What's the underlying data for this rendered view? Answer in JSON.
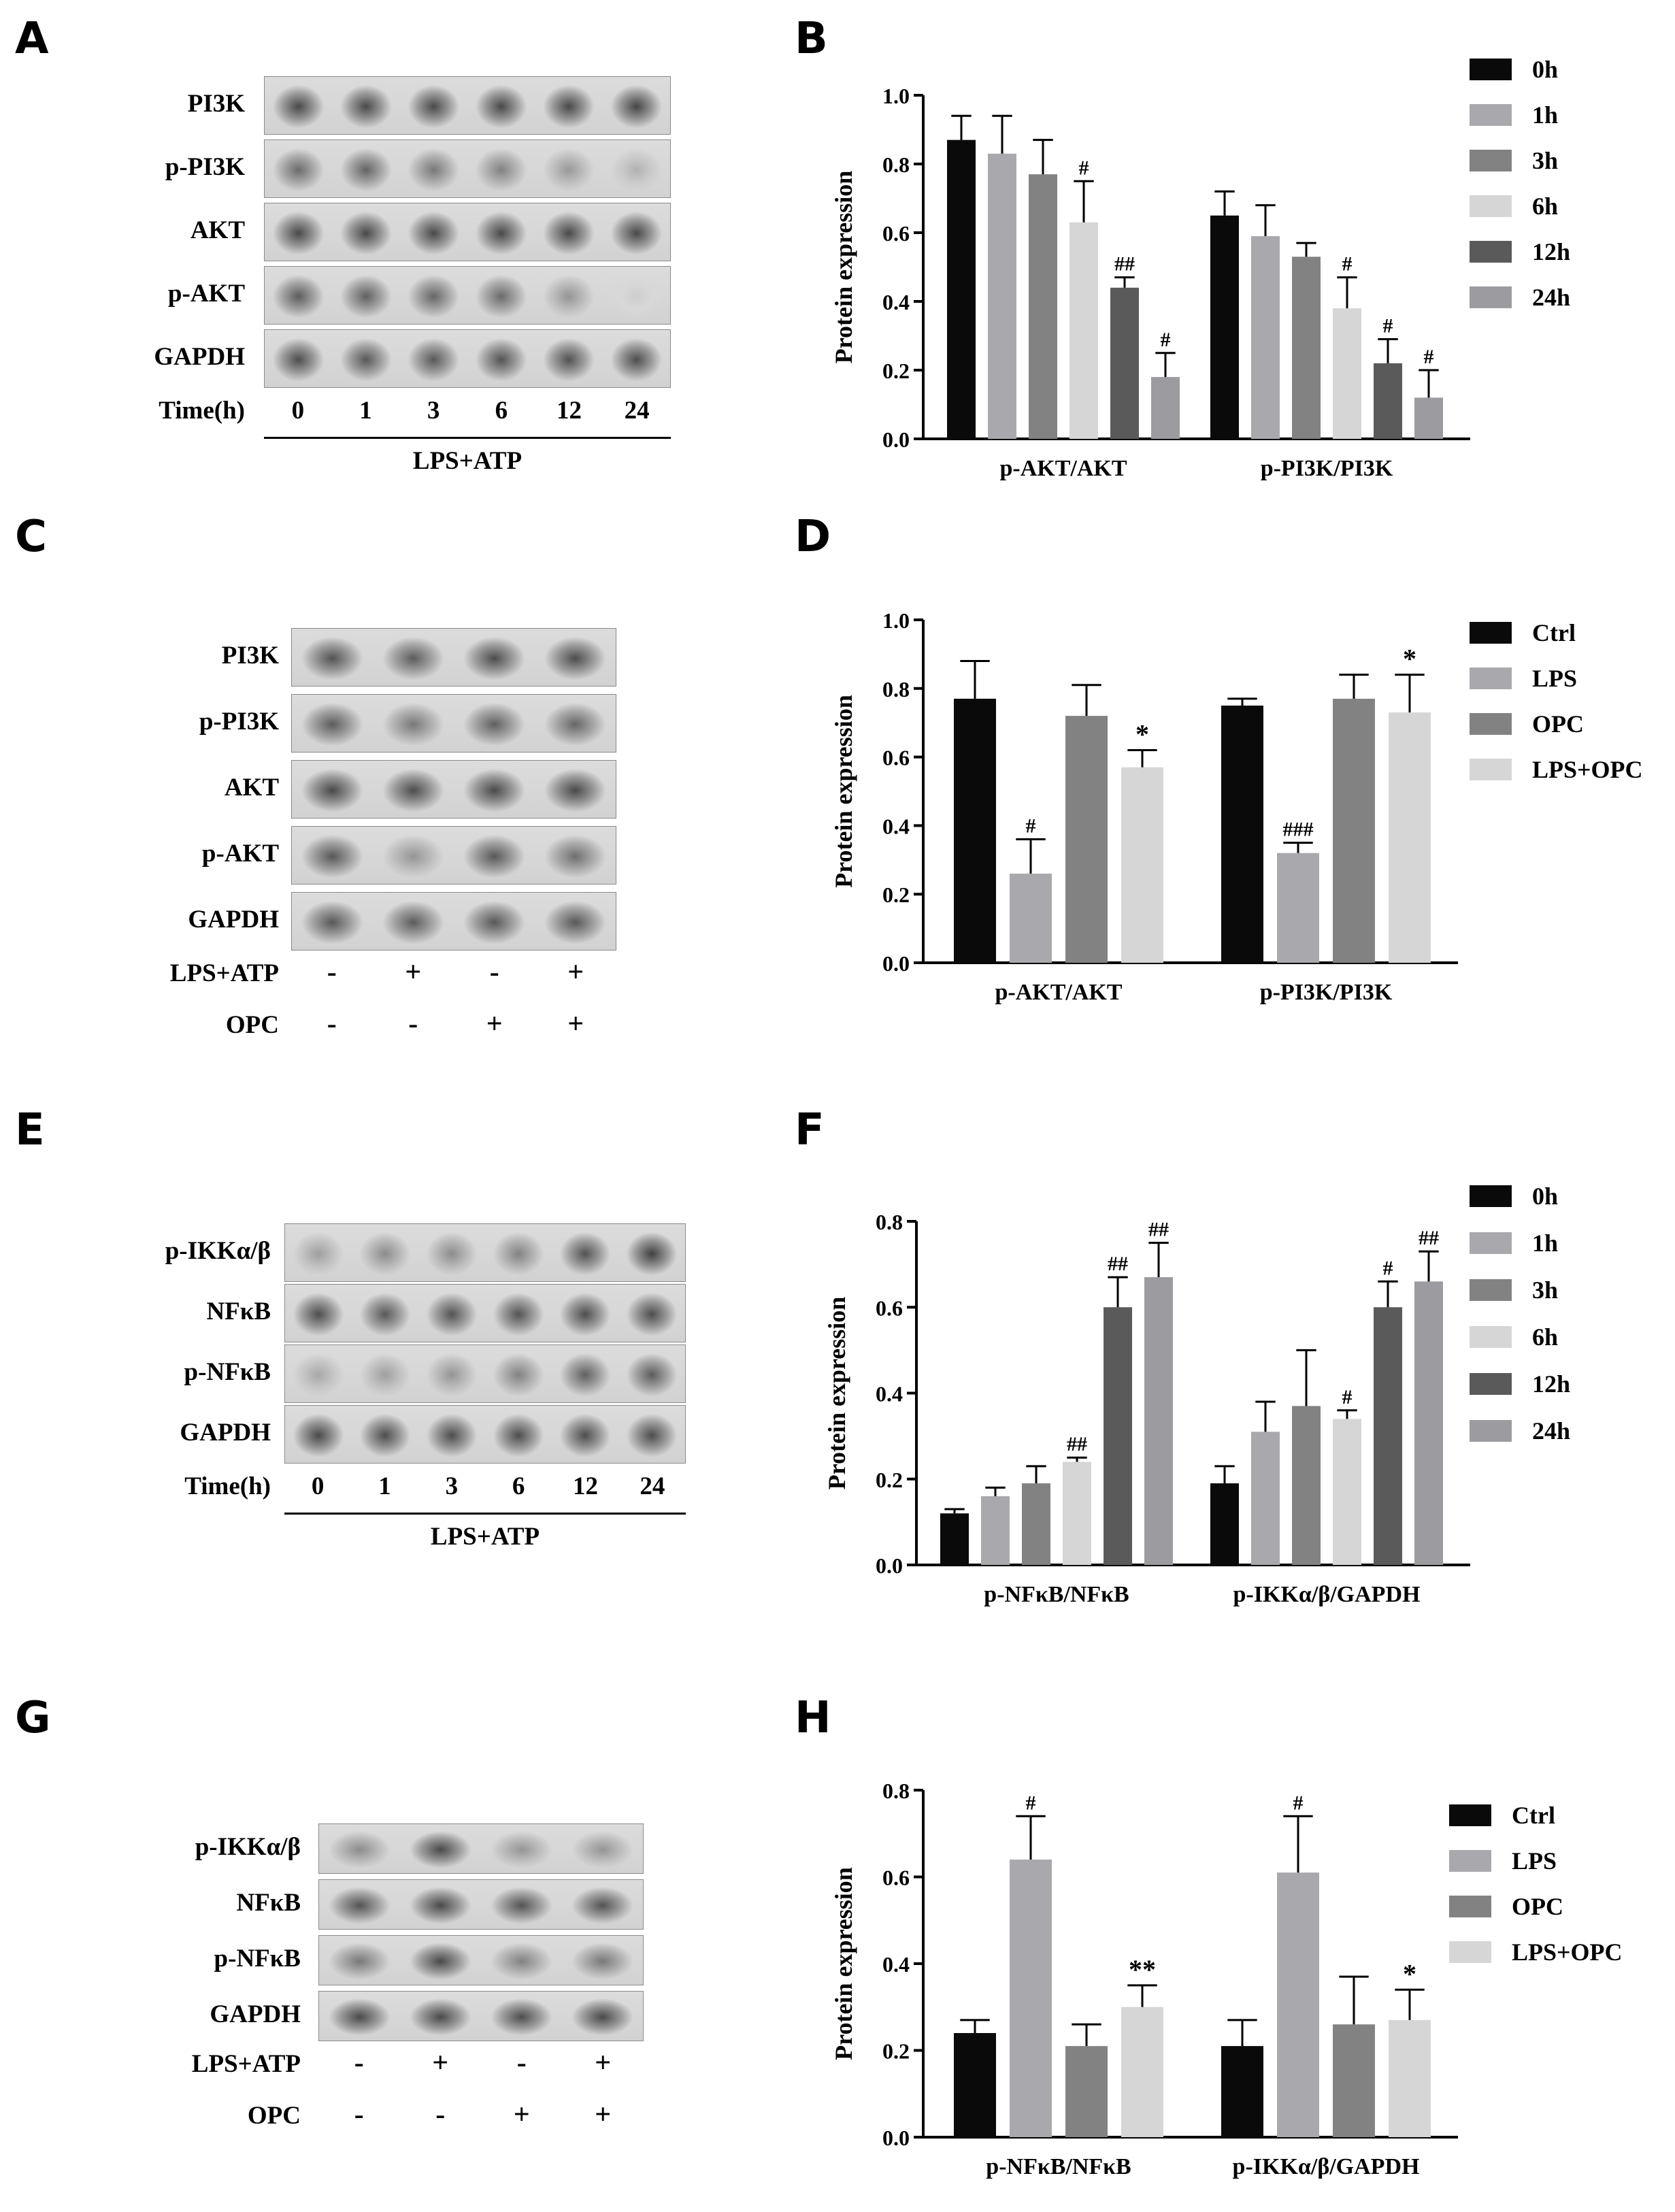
{
  "panels": {
    "A": "A",
    "B": "B",
    "C": "C",
    "D": "D",
    "E": "E",
    "F": "F",
    "G": "G",
    "H": "H"
  },
  "colors": {
    "time6": [
      "#0a0a0a",
      "#a9a9ad",
      "#828282",
      "#d6d6d6",
      "#5a5a5a",
      "#9c9ca0"
    ],
    "treat4": [
      "#0a0a0a",
      "#a9a9ad",
      "#828282",
      "#d6d6d6"
    ]
  },
  "blots": {
    "A": {
      "proteins": [
        "PI3K",
        "p-PI3K",
        "AKT",
        "p-AKT",
        "GAPDH"
      ],
      "time_label": "Time(h)",
      "lanes": [
        "0",
        "1",
        "3",
        "6",
        "12",
        "24"
      ],
      "condition": "LPS+ATP",
      "intensity": [
        [
          0.8,
          0.8,
          0.8,
          0.8,
          0.8,
          0.82
        ],
        [
          0.62,
          0.66,
          0.55,
          0.5,
          0.38,
          0.25
        ],
        [
          0.8,
          0.8,
          0.8,
          0.8,
          0.8,
          0.8
        ],
        [
          0.7,
          0.68,
          0.65,
          0.62,
          0.4,
          0.1
        ],
        [
          0.78,
          0.72,
          0.72,
          0.75,
          0.76,
          0.78
        ]
      ]
    },
    "C": {
      "proteins": [
        "PI3K",
        "p-PI3K",
        "AKT",
        "p-AKT",
        "GAPDH"
      ],
      "row1_label": "LPS+ATP",
      "row1": [
        "-",
        "+",
        "-",
        "+"
      ],
      "row2_label": "OPC",
      "row2": [
        "-",
        "-",
        "+",
        "+"
      ],
      "intensity": [
        [
          0.75,
          0.7,
          0.78,
          0.78
        ],
        [
          0.7,
          0.55,
          0.68,
          0.65
        ],
        [
          0.8,
          0.78,
          0.8,
          0.8
        ],
        [
          0.72,
          0.4,
          0.72,
          0.6
        ],
        [
          0.72,
          0.7,
          0.72,
          0.72
        ]
      ]
    },
    "E": {
      "proteins": [
        "p-IKKα/β",
        "NFκB",
        "p-NFκB",
        "GAPDH"
      ],
      "time_label": "Time(h)",
      "lanes": [
        "0",
        "1",
        "3",
        "6",
        "12",
        "24"
      ],
      "condition": "LPS+ATP",
      "intensity": [
        [
          0.35,
          0.45,
          0.45,
          0.5,
          0.75,
          0.85
        ],
        [
          0.78,
          0.72,
          0.75,
          0.75,
          0.78,
          0.78
        ],
        [
          0.3,
          0.35,
          0.4,
          0.5,
          0.68,
          0.7
        ],
        [
          0.8,
          0.78,
          0.78,
          0.78,
          0.78,
          0.78
        ]
      ]
    },
    "G": {
      "proteins": [
        "p-IKKα/β",
        "NFκB",
        "p-NFκB",
        "GAPDH"
      ],
      "row1_label": "LPS+ATP",
      "row1": [
        "-",
        "+",
        "-",
        "+"
      ],
      "row2_label": "OPC",
      "row2": [
        "-",
        "-",
        "+",
        "+"
      ],
      "intensity": [
        [
          0.45,
          0.8,
          0.4,
          0.4
        ],
        [
          0.75,
          0.8,
          0.75,
          0.75
        ],
        [
          0.55,
          0.8,
          0.5,
          0.55
        ],
        [
          0.8,
          0.8,
          0.78,
          0.8
        ]
      ]
    }
  },
  "chart_data": [
    {
      "id": "B",
      "type": "bar",
      "ylabel": "Protein expression",
      "ylim": [
        0,
        1.0
      ],
      "yticks": [
        "0.0",
        "0.2",
        "0.4",
        "0.6",
        "0.8",
        "1.0"
      ],
      "categories": [
        "p-AKT/AKT",
        "p-PI3K/PI3K"
      ],
      "series": [
        {
          "name": "0h",
          "values": [
            0.87,
            0.65
          ],
          "errors": [
            0.07,
            0.07
          ],
          "marks": [
            "",
            ""
          ]
        },
        {
          "name": "1h",
          "values": [
            0.83,
            0.59
          ],
          "errors": [
            0.11,
            0.09
          ],
          "marks": [
            "",
            ""
          ]
        },
        {
          "name": "3h",
          "values": [
            0.77,
            0.53
          ],
          "errors": [
            0.1,
            0.04
          ],
          "marks": [
            "",
            ""
          ]
        },
        {
          "name": "6h",
          "values": [
            0.63,
            0.38
          ],
          "errors": [
            0.12,
            0.09
          ],
          "marks": [
            "#",
            "#"
          ]
        },
        {
          "name": "12h",
          "values": [
            0.44,
            0.22
          ],
          "errors": [
            0.03,
            0.07
          ],
          "marks": [
            "##",
            "#"
          ]
        },
        {
          "name": "24h",
          "values": [
            0.18,
            0.12
          ],
          "errors": [
            0.07,
            0.08
          ],
          "marks": [
            "#",
            "#"
          ]
        }
      ]
    },
    {
      "id": "D",
      "type": "bar",
      "ylabel": "Protein expression",
      "ylim": [
        0,
        1.0
      ],
      "yticks": [
        "0.0",
        "0.2",
        "0.4",
        "0.6",
        "0.8",
        "1.0"
      ],
      "categories": [
        "p-AKT/AKT",
        "p-PI3K/PI3K"
      ],
      "series": [
        {
          "name": "Ctrl",
          "values": [
            0.77,
            0.75
          ],
          "errors": [
            0.11,
            0.02
          ],
          "marks": [
            "",
            ""
          ]
        },
        {
          "name": "LPS",
          "values": [
            0.26,
            0.32
          ],
          "errors": [
            0.1,
            0.03
          ],
          "marks": [
            "#",
            "###"
          ]
        },
        {
          "name": "OPC",
          "values": [
            0.72,
            0.77
          ],
          "errors": [
            0.09,
            0.07
          ],
          "marks": [
            "",
            ""
          ]
        },
        {
          "name": "LPS+OPC",
          "values": [
            0.57,
            0.73
          ],
          "errors": [
            0.05,
            0.11
          ],
          "marks": [
            "*",
            "*"
          ]
        }
      ]
    },
    {
      "id": "F",
      "type": "bar",
      "ylabel": "Protein expression",
      "ylim": [
        0,
        0.8
      ],
      "yticks": [
        "0.0",
        "0.2",
        "0.4",
        "0.6",
        "0.8"
      ],
      "categories": [
        "p-NFκB/NFκB",
        "p-IKKα/β/GAPDH"
      ],
      "series": [
        {
          "name": "0h",
          "values": [
            0.12,
            0.19
          ],
          "errors": [
            0.01,
            0.04
          ],
          "marks": [
            "",
            ""
          ]
        },
        {
          "name": "1h",
          "values": [
            0.16,
            0.31
          ],
          "errors": [
            0.02,
            0.07
          ],
          "marks": [
            "",
            ""
          ]
        },
        {
          "name": "3h",
          "values": [
            0.19,
            0.37
          ],
          "errors": [
            0.04,
            0.13
          ],
          "marks": [
            "",
            ""
          ]
        },
        {
          "name": "6h",
          "values": [
            0.24,
            0.34
          ],
          "errors": [
            0.01,
            0.02
          ],
          "marks": [
            "##",
            "#"
          ]
        },
        {
          "name": "12h",
          "values": [
            0.6,
            0.6
          ],
          "errors": [
            0.07,
            0.06
          ],
          "marks": [
            "##",
            "#"
          ]
        },
        {
          "name": "24h",
          "values": [
            0.67,
            0.66
          ],
          "errors": [
            0.08,
            0.07
          ],
          "marks": [
            "##",
            "##"
          ]
        }
      ]
    },
    {
      "id": "H",
      "type": "bar",
      "ylabel": "Protein expression",
      "ylim": [
        0,
        0.8
      ],
      "yticks": [
        "0.0",
        "0.2",
        "0.4",
        "0.6",
        "0.8"
      ],
      "categories": [
        "p-NFκB/NFκB",
        "p-IKKα/β/GAPDH"
      ],
      "series": [
        {
          "name": "Ctrl",
          "values": [
            0.24,
            0.21
          ],
          "errors": [
            0.03,
            0.06
          ],
          "marks": [
            "",
            ""
          ]
        },
        {
          "name": "LPS",
          "values": [
            0.64,
            0.61
          ],
          "errors": [
            0.1,
            0.13
          ],
          "marks": [
            "#",
            "#"
          ]
        },
        {
          "name": "OPC",
          "values": [
            0.21,
            0.26
          ],
          "errors": [
            0.05,
            0.11
          ],
          "marks": [
            "",
            ""
          ]
        },
        {
          "name": "LPS+OPC",
          "values": [
            0.3,
            0.27
          ],
          "errors": [
            0.05,
            0.07
          ],
          "marks": [
            "**",
            "*"
          ]
        }
      ]
    }
  ]
}
